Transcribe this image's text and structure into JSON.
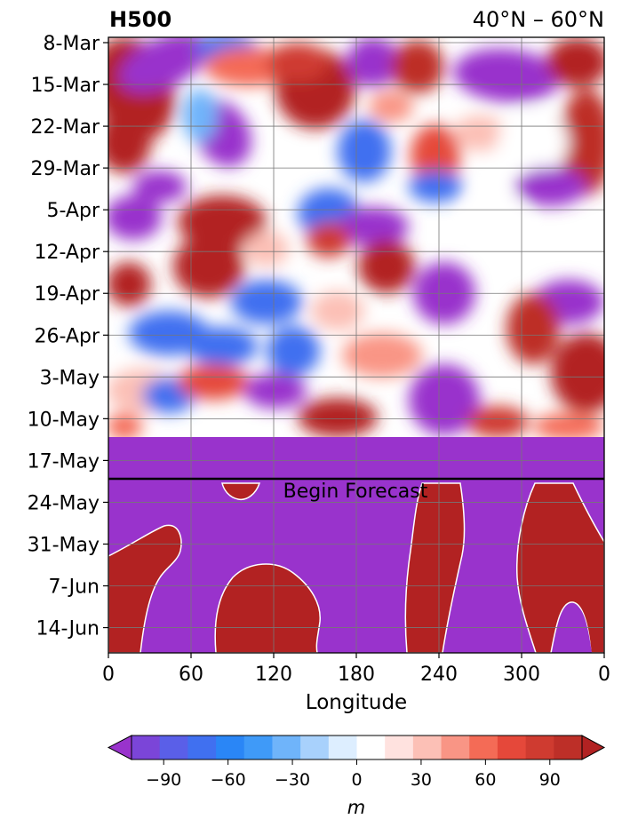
{
  "chart_data": {
    "type": "heatmap",
    "title_left": "H500",
    "title_right": "40°N – 60°N",
    "xlabel": "Longitude",
    "x_ticks": [
      "0",
      "60",
      "120",
      "180",
      "240",
      "300",
      "0"
    ],
    "y_ticks": [
      "8-Mar",
      "15-Mar",
      "22-Mar",
      "29-Mar",
      "5-Apr",
      "12-Apr",
      "19-Apr",
      "26-Apr",
      "3-May",
      "10-May",
      "17-May",
      "24-May",
      "31-May",
      "7-Jun",
      "14-Jun"
    ],
    "annotation": "Begin Forecast",
    "forecast_start": "20-May",
    "colorbar": {
      "unit": "m",
      "ticks": [
        "−90",
        "−60",
        "−30",
        "0",
        "30",
        "60",
        "90"
      ],
      "levels": [
        -105,
        -90,
        -75,
        -60,
        -45,
        -30,
        -15,
        0,
        15,
        30,
        45,
        60,
        75,
        90,
        105
      ],
      "colors": [
        "#9933cc",
        "#7b45d8",
        "#5a5fe8",
        "#4070f0",
        "#2a86f6",
        "#3f9af8",
        "#6fb4fa",
        "#a8d1fc",
        "#ddeeff",
        "#ffffff",
        "#ffe2df",
        "#fcc0b6",
        "#f99585",
        "#f46b56",
        "#e5483a",
        "#cf3b30",
        "#bd2f28",
        "#b22222"
      ]
    },
    "grid": true
  },
  "colors": {
    "negative_extreme": "#9933cc",
    "positive_extreme": "#b22222",
    "forecast_line": "#000000"
  }
}
